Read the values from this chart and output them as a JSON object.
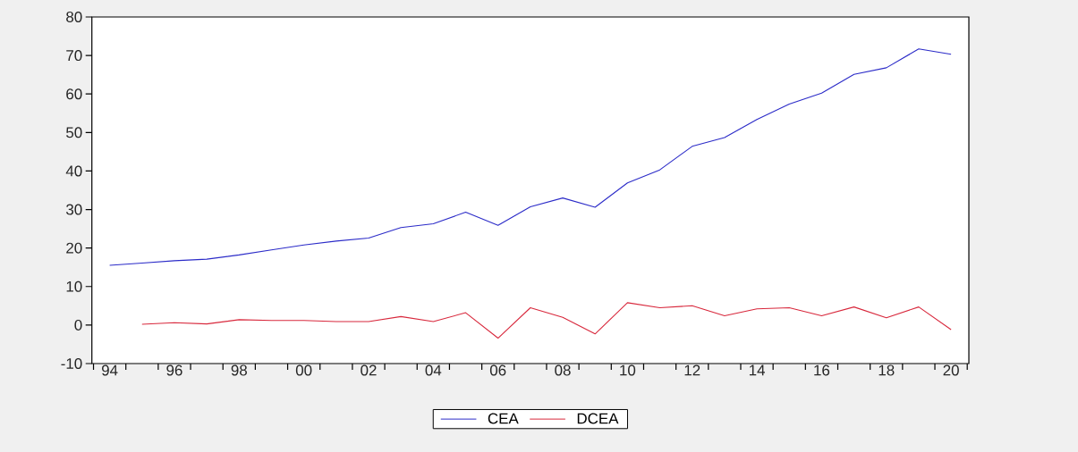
{
  "chart_data": {
    "type": "line",
    "x": [
      1994,
      1995,
      1996,
      1997,
      1998,
      1999,
      2000,
      2001,
      2002,
      2003,
      2004,
      2005,
      2006,
      2007,
      2008,
      2009,
      2010,
      2011,
      2012,
      2013,
      2014,
      2015,
      2016,
      2017,
      2018,
      2019,
      2020
    ],
    "series": [
      {
        "name": "CEA",
        "color": "#2b2bc8",
        "values": [
          15.5,
          16.1,
          16.7,
          17.1,
          18.2,
          19.5,
          20.8,
          21.8,
          22.6,
          25.3,
          26.3,
          29.3,
          25.9,
          30.7,
          33.0,
          30.6,
          36.9,
          40.3,
          46.4,
          48.7,
          53.4,
          57.4,
          60.2,
          65.1,
          66.8,
          71.7,
          70.3
        ]
      },
      {
        "name": "DCEA",
        "color": "#d8283c",
        "values": [
          null,
          0.2,
          0.6,
          0.3,
          1.4,
          1.2,
          1.2,
          0.9,
          0.9,
          2.2,
          0.9,
          3.2,
          -3.4,
          4.5,
          2.0,
          -2.3,
          5.8,
          4.5,
          5.0,
          2.4,
          4.2,
          4.5,
          2.4,
          4.7,
          1.9,
          4.7,
          -1.2
        ]
      }
    ],
    "xlim": [
      1993.45,
      2020.55
    ],
    "xticks": [
      {
        "value": 1994,
        "label": "94"
      },
      {
        "value": 1996,
        "label": "96"
      },
      {
        "value": 1998,
        "label": "98"
      },
      {
        "value": 2000,
        "label": "00"
      },
      {
        "value": 2002,
        "label": "02"
      },
      {
        "value": 2004,
        "label": "04"
      },
      {
        "value": 2006,
        "label": "06"
      },
      {
        "value": 2008,
        "label": "08"
      },
      {
        "value": 2010,
        "label": "10"
      },
      {
        "value": 2012,
        "label": "12"
      },
      {
        "value": 2014,
        "label": "14"
      },
      {
        "value": 2016,
        "label": "16"
      },
      {
        "value": 2018,
        "label": "18"
      },
      {
        "value": 2020,
        "label": "20"
      },
      {
        "value": 1993.5,
        "label": null
      },
      {
        "value": 1994.5,
        "label": null
      },
      {
        "value": 1995.5,
        "label": null
      },
      {
        "value": 1996.5,
        "label": null
      },
      {
        "value": 1997.5,
        "label": null
      },
      {
        "value": 1998.5,
        "label": null
      },
      {
        "value": 1999.5,
        "label": null
      },
      {
        "value": 2000.5,
        "label": null
      },
      {
        "value": 2001.5,
        "label": null
      },
      {
        "value": 2002.5,
        "label": null
      },
      {
        "value": 2003.5,
        "label": null
      },
      {
        "value": 2004.5,
        "label": null
      },
      {
        "value": 2005.5,
        "label": null
      },
      {
        "value": 2006.5,
        "label": null
      },
      {
        "value": 2007.5,
        "label": null
      },
      {
        "value": 2008.5,
        "label": null
      },
      {
        "value": 2009.5,
        "label": null
      },
      {
        "value": 2010.5,
        "label": null
      },
      {
        "value": 2011.5,
        "label": null
      },
      {
        "value": 2012.5,
        "label": null
      },
      {
        "value": 2013.5,
        "label": null
      },
      {
        "value": 2014.5,
        "label": null
      },
      {
        "value": 2015.5,
        "label": null
      },
      {
        "value": 2016.5,
        "label": null
      },
      {
        "value": 2017.5,
        "label": null
      },
      {
        "value": 2018.5,
        "label": null
      },
      {
        "value": 2019.5,
        "label": null
      },
      {
        "value": 2020.5,
        "label": null
      }
    ],
    "ylim": [
      -10,
      80
    ],
    "yticks": [
      -10,
      0,
      10,
      20,
      30,
      40,
      50,
      60,
      70,
      80
    ],
    "legend": "bottom",
    "grid": false,
    "marker": "none",
    "line_style": "solid"
  }
}
